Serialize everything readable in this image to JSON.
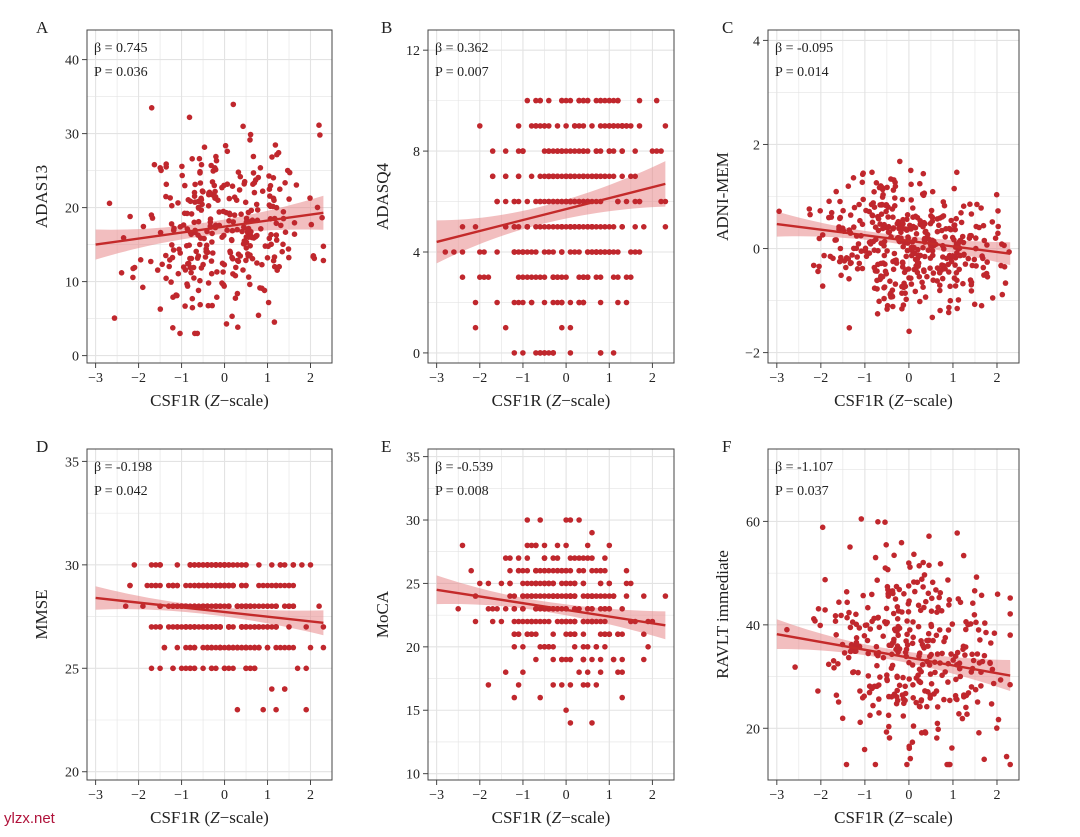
{
  "figure": {
    "watermark": "ylzx.net",
    "colors": {
      "point": "#c0272d",
      "line": "#c42a2a",
      "band": "#e8898b",
      "grid": "#e3e3e3",
      "frame": "#444444",
      "text": "#222222"
    }
  },
  "chart_data": [
    {
      "type": "scatter",
      "panel": "A",
      "ylabel": "ADAS13",
      "xlabel_main": "CSF1R (",
      "xlabel_italic": "Z",
      "xlabel_tail": "−scale)",
      "beta_label": "β = 0.745",
      "p_label": "P = 0.036",
      "xlim": [
        -3.2,
        2.5
      ],
      "ylim": [
        -1,
        44
      ],
      "xticks": [
        -3,
        -2,
        -1,
        0,
        1,
        2
      ],
      "xtick_labels": [
        "−3",
        "−2",
        "−1",
        "0",
        "1",
        "2"
      ],
      "yticks": [
        0,
        10,
        20,
        30,
        40
      ],
      "ytick_labels": [
        "0",
        "10",
        "20",
        "30",
        "40"
      ],
      "fit": {
        "x0": -3.0,
        "y0": 15.0,
        "x1": 2.3,
        "y1": 19.3
      },
      "band_halfwidth": [
        2.6,
        0.9,
        2.3
      ],
      "seed": 11,
      "n": 330,
      "noise_sd": 6.0,
      "round_y": false,
      "yclip": [
        3,
        38
      ]
    },
    {
      "type": "scatter",
      "panel": "B",
      "ylabel": "ADASQ4",
      "xlabel_main": "CSF1R (",
      "xlabel_italic": "Z",
      "xlabel_tail": "−scale)",
      "beta_label": "β = 0.362",
      "p_label": "P = 0.007",
      "xlim": [
        -3.2,
        2.5
      ],
      "ylim": [
        -0.4,
        12.8
      ],
      "xticks": [
        -3,
        -2,
        -1,
        0,
        1,
        2
      ],
      "xtick_labels": [
        "−3",
        "−2",
        "−1",
        "0",
        "1",
        "2"
      ],
      "yticks": [
        0,
        4,
        8,
        12
      ],
      "ytick_labels": [
        "0",
        "4",
        "8",
        "12"
      ],
      "fit": {
        "x0": -3.0,
        "y0": 4.4,
        "x1": 2.3,
        "y1": 6.7
      },
      "band_halfwidth": [
        1.1,
        0.35,
        0.9
      ],
      "seed": 23,
      "n": 360,
      "noise_sd": 2.6,
      "round_y": true,
      "yclip": [
        0,
        10
      ]
    },
    {
      "type": "scatter",
      "panel": "C",
      "ylabel": "ADNI-MEM",
      "xlabel_main": "CSF1R (",
      "xlabel_italic": "Z",
      "xlabel_tail": "−scale)",
      "beta_label": "β = -0.095",
      "p_label": "P = 0.014",
      "xlim": [
        -3.2,
        2.5
      ],
      "ylim": [
        -2.2,
        4.2
      ],
      "xticks": [
        -3,
        -2,
        -1,
        0,
        1,
        2
      ],
      "xtick_labels": [
        "−3",
        "−2",
        "−1",
        "0",
        "1",
        "2"
      ],
      "yticks": [
        -2,
        0,
        2,
        4
      ],
      "ytick_labels": [
        "−2",
        "0",
        "2",
        "4"
      ],
      "fit": {
        "x0": -3.0,
        "y0": 0.47,
        "x1": 2.3,
        "y1": -0.1
      },
      "band_halfwidth": [
        0.32,
        0.08,
        0.22
      ],
      "seed": 37,
      "n": 420,
      "noise_sd": 0.62,
      "round_y": false,
      "yclip": [
        -1.8,
        3.0
      ]
    },
    {
      "type": "scatter",
      "panel": "D",
      "ylabel": "MMSE",
      "xlabel_main": "CSF1R (",
      "xlabel_italic": "Z",
      "xlabel_tail": "−scale)",
      "beta_label": "β = -0.198",
      "p_label": "P = 0.042",
      "xlim": [
        -3.2,
        2.5
      ],
      "ylim": [
        19.6,
        35.6
      ],
      "xticks": [
        -3,
        -2,
        -1,
        0,
        1,
        2
      ],
      "xtick_labels": [
        "−3",
        "−2",
        "−1",
        "0",
        "1",
        "2"
      ],
      "yticks": [
        20,
        25,
        30,
        35
      ],
      "ytick_labels": [
        "20",
        "25",
        "30",
        "35"
      ],
      "fit": {
        "x0": -3.0,
        "y0": 28.4,
        "x1": 2.3,
        "y1": 27.2
      },
      "band_halfwidth": [
        0.75,
        0.2,
        0.6
      ],
      "seed": 41,
      "n": 360,
      "noise_sd": 1.7,
      "round_y": true,
      "yclip": [
        23,
        30
      ]
    },
    {
      "type": "scatter",
      "panel": "E",
      "ylabel": "MoCA",
      "xlabel_main": "CSF1R (",
      "xlabel_italic": "Z",
      "xlabel_tail": "−scale)",
      "beta_label": "β = -0.539",
      "p_label": "P = 0.008",
      "xlim": [
        -3.2,
        2.5
      ],
      "ylim": [
        9.5,
        35.6
      ],
      "xticks": [
        -3,
        -2,
        -1,
        0,
        1,
        2
      ],
      "xtick_labels": [
        "−3",
        "−2",
        "−1",
        "0",
        "1",
        "2"
      ],
      "yticks": [
        10,
        15,
        20,
        25,
        30,
        35
      ],
      "ytick_labels": [
        "10",
        "15",
        "20",
        "25",
        "30",
        "35"
      ],
      "fit": {
        "x0": -3.0,
        "y0": 24.5,
        "x1": 2.3,
        "y1": 21.7
      },
      "band_halfwidth": [
        1.5,
        0.4,
        1.1
      ],
      "seed": 53,
      "n": 300,
      "noise_sd": 3.0,
      "round_y": true,
      "yclip": [
        14,
        30
      ]
    },
    {
      "type": "scatter",
      "panel": "F",
      "ylabel": "RAVLT immediate",
      "xlabel_main": "CSF1R (",
      "xlabel_italic": "Z",
      "xlabel_tail": "−scale)",
      "beta_label": "β = -1.107",
      "p_label": "P = 0.037",
      "xlim": [
        -3.2,
        2.5
      ],
      "ylim": [
        10,
        74
      ],
      "xticks": [
        -3,
        -2,
        -1,
        0,
        1,
        2
      ],
      "xtick_labels": [
        "−3",
        "−2",
        "−1",
        "0",
        "1",
        "2"
      ],
      "yticks": [
        20,
        40,
        60
      ],
      "ytick_labels": [
        "20",
        "40",
        "60"
      ],
      "fit": {
        "x0": -3.0,
        "y0": 38.2,
        "x1": 2.3,
        "y1": 30.2
      },
      "band_halfwidth": [
        3.8,
        1.0,
        3.0
      ],
      "seed": 67,
      "n": 360,
      "noise_sd": 9.5,
      "round_y": false,
      "yclip": [
        13,
        68
      ]
    }
  ]
}
